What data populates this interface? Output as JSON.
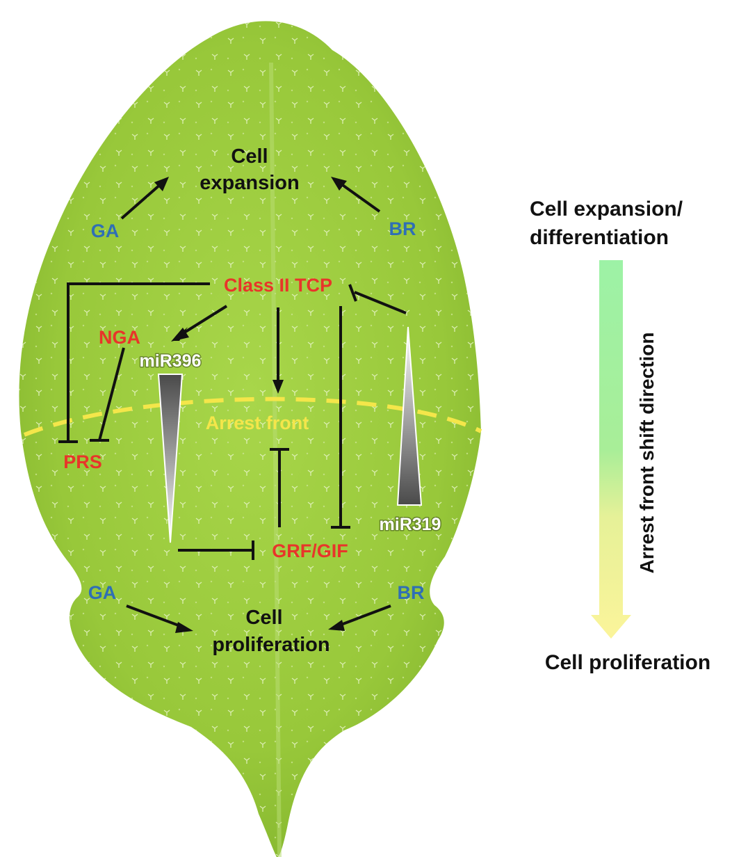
{
  "figure": {
    "upper": {
      "cell_expansion_line1": "Cell",
      "cell_expansion_line2": "expansion",
      "ga": "GA",
      "br": "BR"
    },
    "network": {
      "class_ii_tcp": "Class II TCP",
      "nga": "NGA",
      "mir396": "miR396",
      "arrest_front": "Arrest front",
      "prs": "PRS",
      "grf_gif": "GRF/GIF",
      "mir319": "miR319"
    },
    "lower": {
      "ga": "GA",
      "br": "BR",
      "cell_proliferation_line1": "Cell",
      "cell_proliferation_line2": "proliferation"
    },
    "side_panel": {
      "top_line1": "Cell expansion/",
      "top_line2": "differentiation",
      "arrow_label": "Arrest front shift direction",
      "bottom": "Cell proliferation"
    },
    "colors": {
      "leaf": "#9ccc3c",
      "gene_red": "#e8352a",
      "hormone_blue": "#2f6fb5",
      "arrest_front_yellow": "#f4e64a",
      "arrow_green": "#9ff0a0",
      "arrow_yellow": "#fbf49a"
    }
  }
}
